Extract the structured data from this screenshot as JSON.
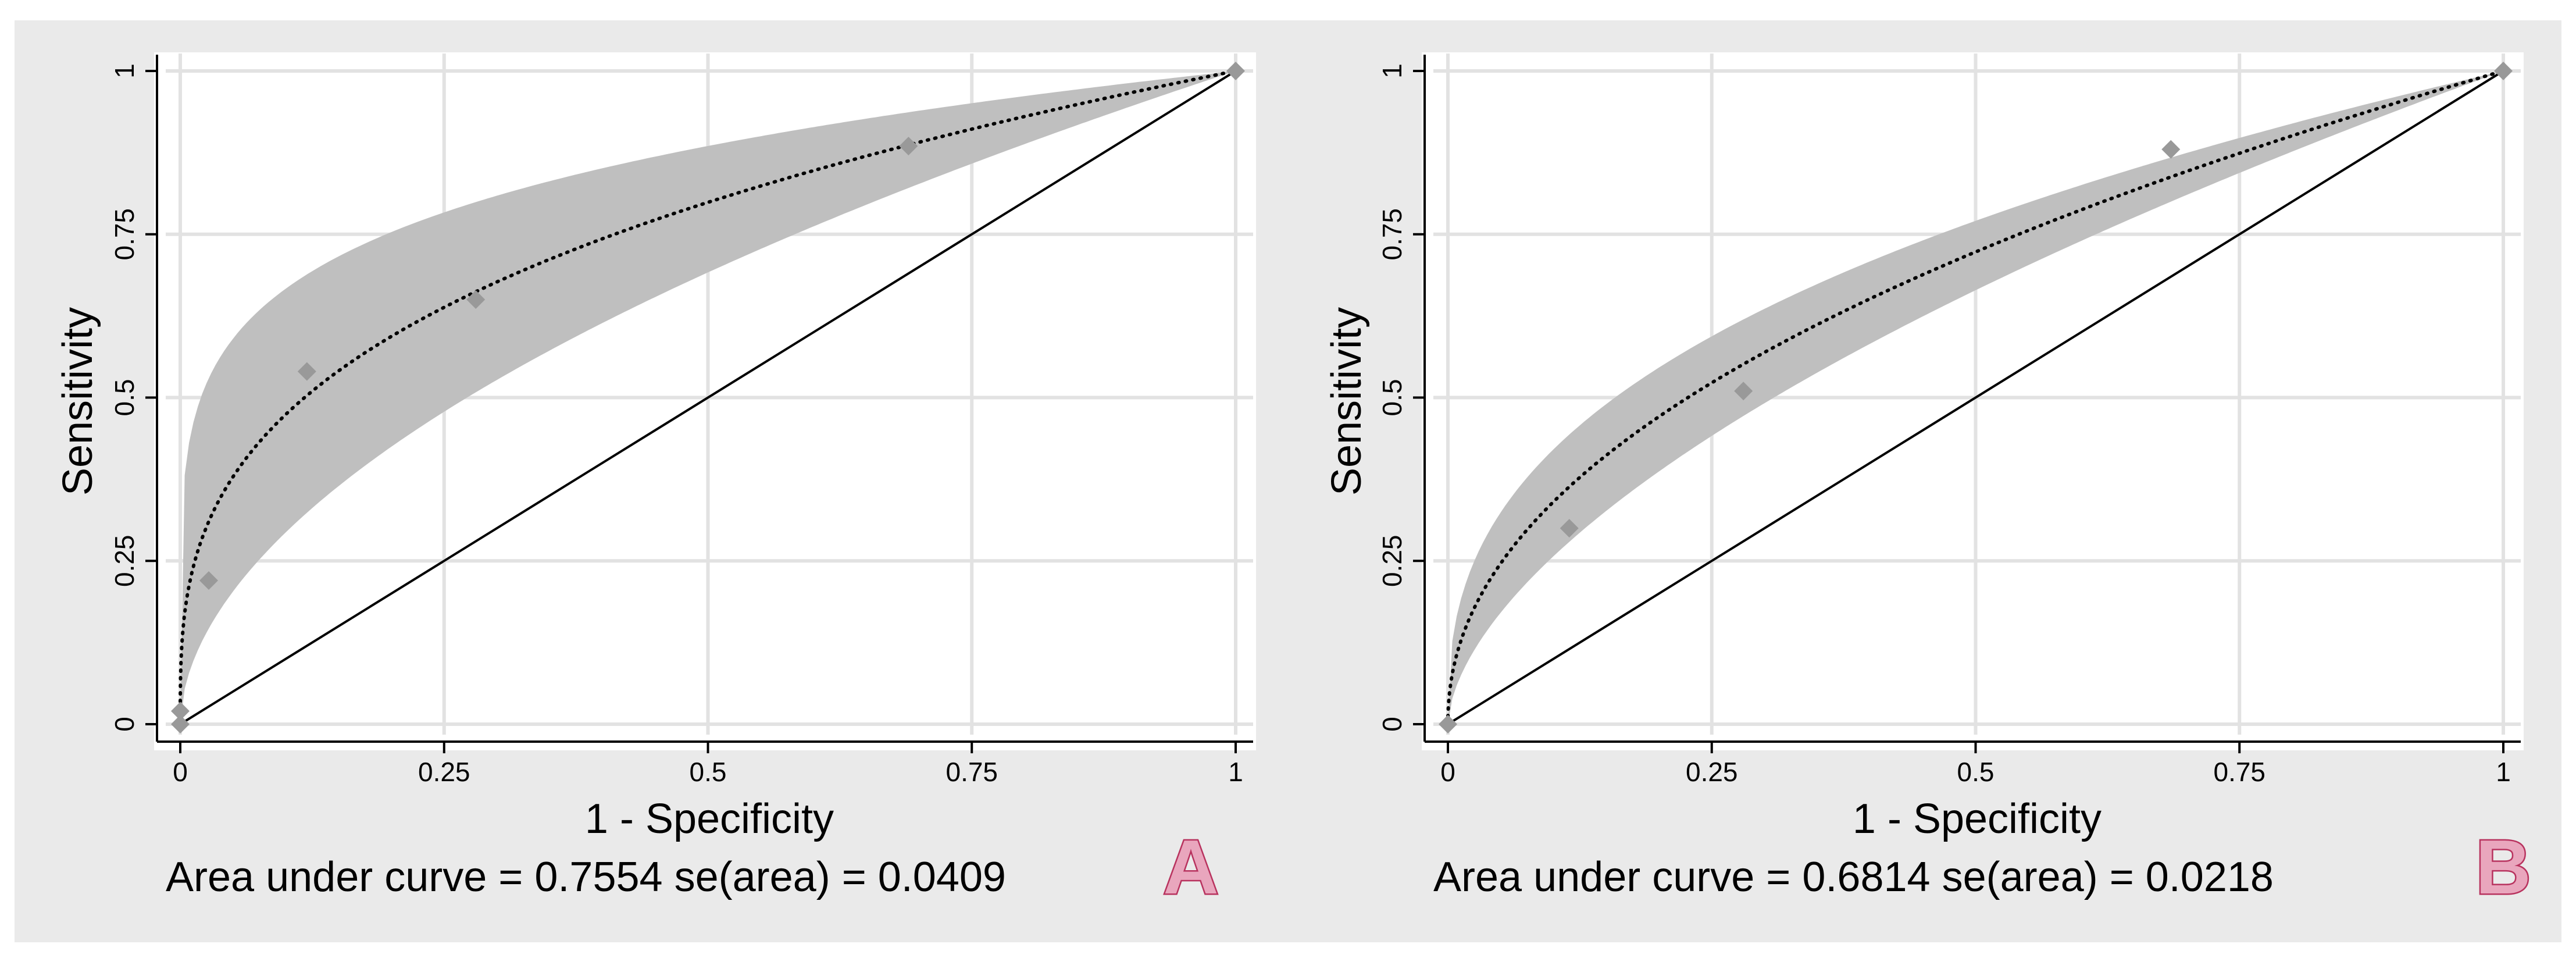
{
  "chart_data": [
    {
      "type": "scatter",
      "panel_letter": "A",
      "xlabel": "1 - Specificity",
      "ylabel": "Sensitivity",
      "xlim": [
        0,
        1
      ],
      "ylim": [
        0,
        1
      ],
      "xticks": [
        0,
        0.25,
        0.5,
        0.75,
        1
      ],
      "xtick_labels": [
        "0",
        "0.25",
        "0.5",
        "0.75",
        "1"
      ],
      "yticks": [
        0,
        0.25,
        0.5,
        0.75,
        1
      ],
      "ytick_labels": [
        "0",
        "0.25",
        "0.5",
        "0.75",
        "1"
      ],
      "grid": true,
      "note": "Area under curve = 0.7554  se(area) = 0.0409",
      "auc": 0.7554,
      "se_area": 0.0409,
      "band_power_range": [
        0.176,
        0.532
      ],
      "series": [
        {
          "name": "observed points",
          "x": [
            0,
            0,
            0.027,
            0.12,
            0.28,
            0.69,
            1
          ],
          "y": [
            0,
            0.02,
            0.22,
            0.54,
            0.65,
            0.885,
            1
          ]
        },
        {
          "name": "fitted ROC",
          "power": 0.324
        },
        {
          "name": "reference",
          "x": [
            0,
            1
          ],
          "y": [
            0,
            1
          ]
        }
      ],
      "colors": {
        "band": "#bfbfbf",
        "points": "#999999",
        "letter_fill": "#e9a6bd",
        "letter_stroke": "#b8325e"
      }
    },
    {
      "type": "scatter",
      "panel_letter": "B",
      "xlabel": "1 - Specificity",
      "ylabel": "Sensitivity",
      "xlim": [
        0,
        1
      ],
      "ylim": [
        0,
        1
      ],
      "xticks": [
        0,
        0.25,
        0.5,
        0.75,
        1
      ],
      "xtick_labels": [
        "0",
        "0.25",
        "0.5",
        "0.75",
        "1"
      ],
      "yticks": [
        0,
        0.25,
        0.5,
        0.75,
        1
      ],
      "ytick_labels": [
        "0",
        "0.25",
        "0.5",
        "0.75",
        "1"
      ],
      "grid": true,
      "note": "Area under curve = 0.6814  se(area) = 0.0218",
      "auc": 0.6814,
      "se_area": 0.0218,
      "band_power_range": [
        0.376,
        0.59
      ],
      "series": [
        {
          "name": "observed points",
          "x": [
            0,
            0.115,
            0.28,
            0.685,
            1
          ],
          "y": [
            0,
            0.3,
            0.51,
            0.88,
            1
          ]
        },
        {
          "name": "fitted ROC",
          "power": 0.468
        },
        {
          "name": "reference",
          "x": [
            0,
            1
          ],
          "y": [
            0,
            1
          ]
        }
      ],
      "colors": {
        "band": "#bfbfbf",
        "points": "#999999",
        "letter_fill": "#e9a6bd",
        "letter_stroke": "#b8325e"
      }
    }
  ]
}
